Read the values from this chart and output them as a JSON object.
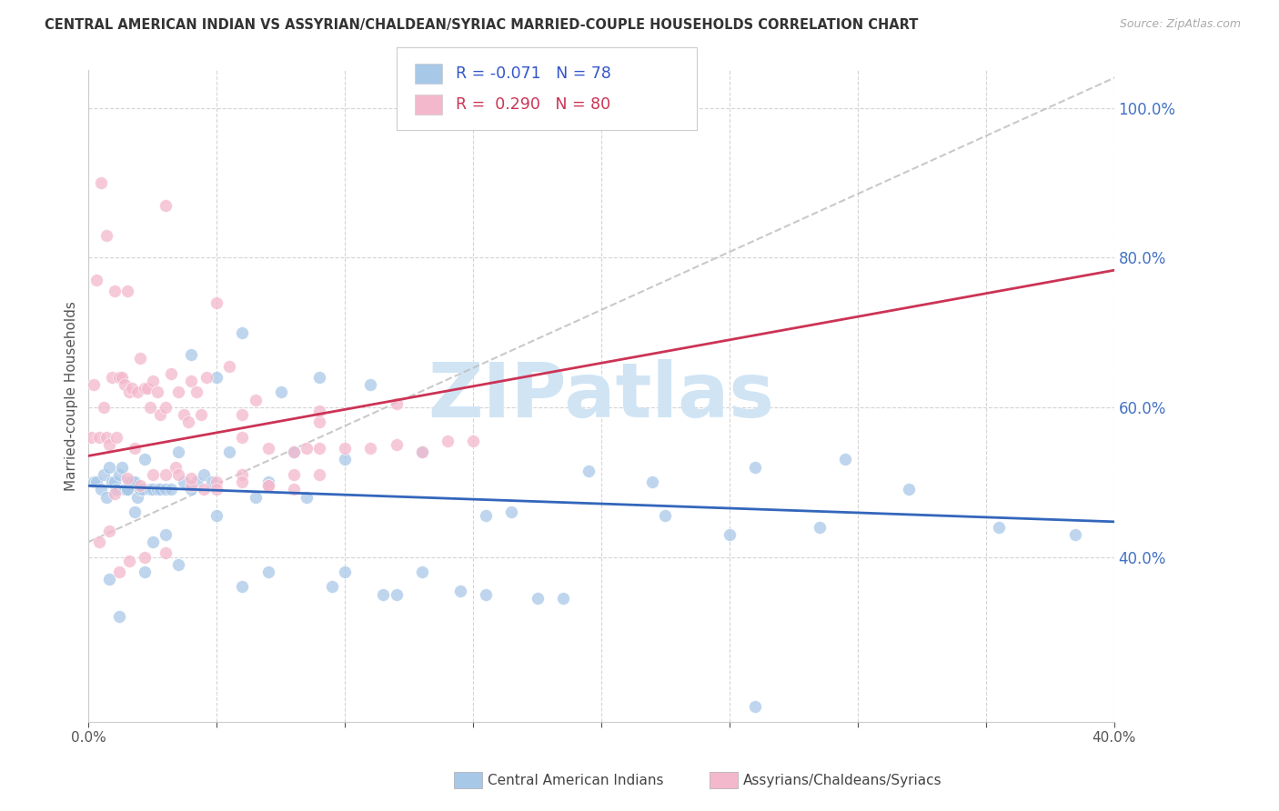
{
  "title": "CENTRAL AMERICAN INDIAN VS ASSYRIAN/CHALDEAN/SYRIAC MARRIED-COUPLE HOUSEHOLDS CORRELATION CHART",
  "source": "Source: ZipAtlas.com",
  "ylabel": "Married-couple Households",
  "blue_label": "Central American Indians",
  "pink_label": "Assyrians/Chaldeans/Syriacs",
  "blue_dot_color": "#a8c8e8",
  "pink_dot_color": "#f4b8cc",
  "blue_line_color": "#3366bb",
  "pink_line_color": "#cc3355",
  "gray_dash_color": "#c0c0c0",
  "watermark_color": "#d0e4f4",
  "xmin": 0.0,
  "xmax": 0.4,
  "ymin": 0.18,
  "ymax": 1.05,
  "ytick_vals": [
    0.4,
    0.6,
    0.8,
    1.0
  ],
  "xtick_vals": [
    0.0,
    0.05,
    0.1,
    0.15,
    0.2,
    0.25,
    0.3,
    0.35,
    0.4
  ],
  "blue_R": -0.071,
  "pink_R": 0.29,
  "blue_intercept": 0.495,
  "blue_slope": -0.12,
  "pink_intercept": 0.535,
  "pink_slope": 0.62,
  "gray_intercept": 0.42,
  "gray_slope": 1.55,
  "blue_dots_x": [
    0.002,
    0.003,
    0.005,
    0.006,
    0.007,
    0.008,
    0.009,
    0.01,
    0.011,
    0.012,
    0.013,
    0.014,
    0.015,
    0.016,
    0.017,
    0.018,
    0.019,
    0.02,
    0.021,
    0.022,
    0.024,
    0.025,
    0.027,
    0.028,
    0.03,
    0.032,
    0.035,
    0.037,
    0.04,
    0.042,
    0.045,
    0.048,
    0.05,
    0.055,
    0.06,
    0.065,
    0.07,
    0.075,
    0.08,
    0.09,
    0.095,
    0.1,
    0.11,
    0.115,
    0.12,
    0.13,
    0.145,
    0.155,
    0.165,
    0.175,
    0.185,
    0.195,
    0.22,
    0.25,
    0.26,
    0.285,
    0.295,
    0.32,
    0.355,
    0.385,
    0.008,
    0.012,
    0.015,
    0.018,
    0.022,
    0.025,
    0.03,
    0.035,
    0.04,
    0.05,
    0.06,
    0.07,
    0.085,
    0.1,
    0.13,
    0.155,
    0.225,
    0.26
  ],
  "blue_dots_y": [
    0.5,
    0.5,
    0.49,
    0.51,
    0.48,
    0.52,
    0.5,
    0.5,
    0.49,
    0.51,
    0.52,
    0.49,
    0.49,
    0.5,
    0.5,
    0.5,
    0.48,
    0.49,
    0.49,
    0.53,
    0.49,
    0.49,
    0.49,
    0.49,
    0.49,
    0.49,
    0.54,
    0.5,
    0.67,
    0.5,
    0.51,
    0.5,
    0.64,
    0.54,
    0.7,
    0.48,
    0.5,
    0.62,
    0.54,
    0.64,
    0.36,
    0.38,
    0.63,
    0.35,
    0.35,
    0.38,
    0.355,
    0.35,
    0.46,
    0.345,
    0.345,
    0.515,
    0.5,
    0.43,
    0.52,
    0.44,
    0.53,
    0.49,
    0.44,
    0.43,
    0.37,
    0.32,
    0.49,
    0.46,
    0.38,
    0.42,
    0.43,
    0.39,
    0.49,
    0.455,
    0.36,
    0.38,
    0.48,
    0.53,
    0.54,
    0.455,
    0.455,
    0.2
  ],
  "pink_dots_x": [
    0.001,
    0.002,
    0.004,
    0.005,
    0.006,
    0.007,
    0.008,
    0.009,
    0.01,
    0.011,
    0.012,
    0.013,
    0.014,
    0.015,
    0.016,
    0.017,
    0.018,
    0.019,
    0.02,
    0.022,
    0.023,
    0.024,
    0.025,
    0.027,
    0.028,
    0.03,
    0.032,
    0.034,
    0.035,
    0.037,
    0.039,
    0.04,
    0.042,
    0.044,
    0.046,
    0.05,
    0.055,
    0.06,
    0.065,
    0.07,
    0.08,
    0.085,
    0.09,
    0.1,
    0.11,
    0.12,
    0.13,
    0.14,
    0.15,
    0.015,
    0.025,
    0.035,
    0.045,
    0.01,
    0.02,
    0.03,
    0.04,
    0.05,
    0.06,
    0.07,
    0.08,
    0.09,
    0.03,
    0.06,
    0.09,
    0.12,
    0.004,
    0.008,
    0.012,
    0.016,
    0.022,
    0.03,
    0.04,
    0.05,
    0.06,
    0.07,
    0.08,
    0.09,
    0.003,
    0.007
  ],
  "pink_dots_y": [
    0.56,
    0.63,
    0.56,
    0.9,
    0.6,
    0.56,
    0.55,
    0.64,
    0.755,
    0.56,
    0.64,
    0.64,
    0.63,
    0.755,
    0.62,
    0.625,
    0.545,
    0.62,
    0.665,
    0.625,
    0.625,
    0.6,
    0.635,
    0.62,
    0.59,
    0.6,
    0.645,
    0.52,
    0.62,
    0.59,
    0.58,
    0.635,
    0.62,
    0.59,
    0.64,
    0.74,
    0.655,
    0.56,
    0.61,
    0.545,
    0.54,
    0.545,
    0.58,
    0.545,
    0.545,
    0.55,
    0.54,
    0.555,
    0.555,
    0.505,
    0.51,
    0.51,
    0.49,
    0.485,
    0.495,
    0.51,
    0.495,
    0.5,
    0.51,
    0.495,
    0.51,
    0.545,
    0.87,
    0.59,
    0.595,
    0.605,
    0.42,
    0.435,
    0.38,
    0.395,
    0.4,
    0.405,
    0.505,
    0.49,
    0.5,
    0.495,
    0.49,
    0.51,
    0.77,
    0.83
  ]
}
